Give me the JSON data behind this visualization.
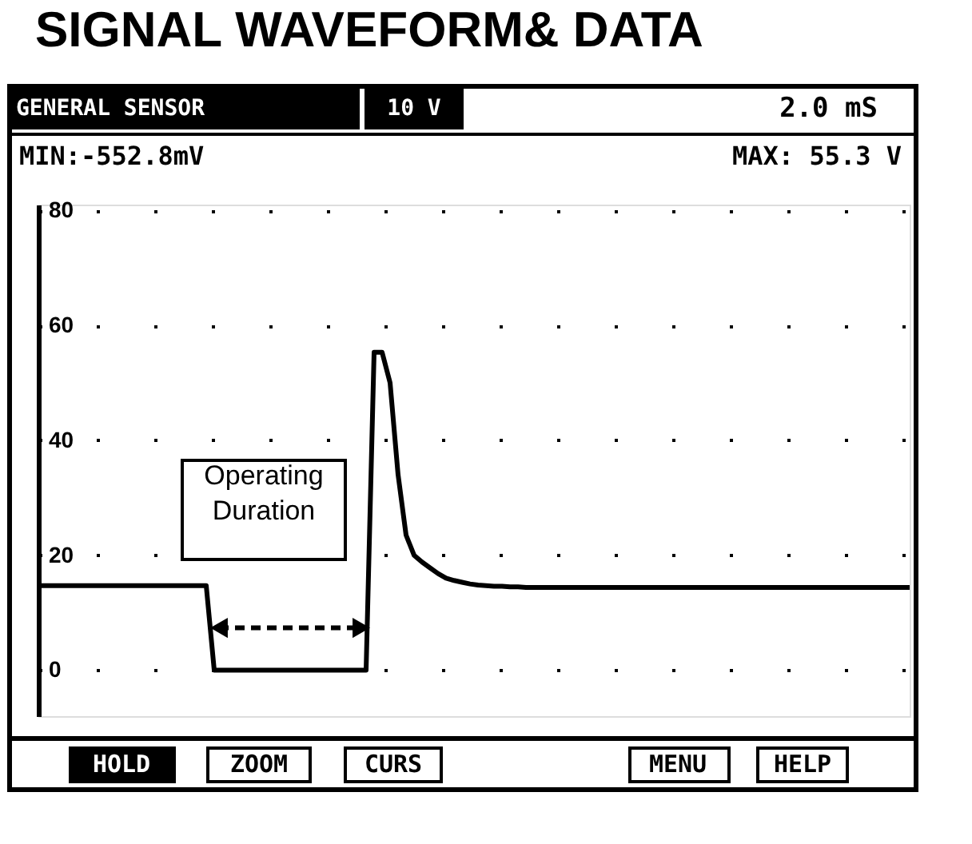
{
  "chart_data": {
    "type": "line",
    "title": "SIGNAL WAVEFORM& DATA",
    "annotations": [
      "GENERAL SENSOR",
      "10 V",
      "2.0 mS",
      "MIN:-552.8mV",
      "MAX: 55.3 V",
      "Operating Duration",
      "HOLD",
      "ZOOM",
      "CURS",
      "MENU",
      "HELP"
    ],
    "categories": [
      null,
      null,
      null,
      null,
      null,
      null,
      null,
      null,
      null,
      null,
      null,
      null,
      null,
      null,
      null,
      null,
      null,
      null,
      null,
      null,
      null,
      null,
      null,
      null,
      null,
      null,
      null,
      null,
      null,
      null,
      null,
      null,
      null,
      null,
      null,
      null,
      null,
      null,
      null,
      null,
      null,
      null,
      null,
      null,
      null,
      null,
      null,
      null,
      null,
      null,
      null,
      null,
      null,
      null,
      null,
      null,
      null,
      null,
      null,
      null,
      null,
      null,
      null,
      null,
      null,
      null,
      null,
      null,
      null,
      null,
      null,
      null,
      null,
      null,
      null,
      null,
      null,
      null,
      null,
      null,
      null,
      null,
      null,
      null,
      null,
      null,
      null,
      null,
      null,
      null,
      null,
      null,
      null,
      null,
      null,
      null,
      null,
      null,
      null,
      null,
      null,
      null,
      null,
      null,
      null,
      null,
      null,
      null,
      null,
      null
    ],
    "series": [
      {
        "color": "#000000",
        "values": [
          14.7,
          14.7,
          14.7,
          14.7,
          14.7,
          14.7,
          14.7,
          14.7,
          14.7,
          14.7,
          14.7,
          14.7,
          14.7,
          14.7,
          14.7,
          14.7,
          14.7,
          14.7,
          14.7,
          14.7,
          14.7,
          14.7,
          0,
          0,
          0,
          0,
          0,
          0,
          0,
          0,
          0,
          0,
          0,
          0,
          0,
          0,
          0,
          0,
          0,
          0,
          0,
          0,
          55.3,
          55.3,
          50,
          34,
          23.5,
          20,
          18.8,
          17.8,
          16.8,
          16,
          15.6,
          15.3,
          15,
          14.8,
          14.7,
          14.6,
          14.6,
          14.5,
          14.5,
          14.4,
          14.4,
          14.4,
          14.4,
          14.4,
          14.4,
          14.4,
          14.4,
          14.4,
          14.4,
          14.4,
          14.4,
          14.4,
          14.4,
          14.4,
          14.4,
          14.4,
          14.4,
          14.4,
          14.4,
          14.4,
          14.4,
          14.4,
          14.4,
          14.4,
          14.4,
          14.4,
          14.4,
          14.4,
          14.4,
          14.4,
          14.4,
          14.4,
          14.4,
          14.4,
          14.4,
          14.4,
          14.4,
          14.4,
          14.4,
          14.4,
          14.4,
          14.4,
          14.4,
          14.4,
          14.4,
          14.4,
          14.4,
          14.4
        ]
      }
    ],
    "ylim": [
      -8,
      81
    ],
    "yticks": [
      0,
      20,
      40,
      60,
      80
    ],
    "grid": "y",
    "tick_labels": "y",
    "line_style": "solid",
    "marker": "none"
  }
}
